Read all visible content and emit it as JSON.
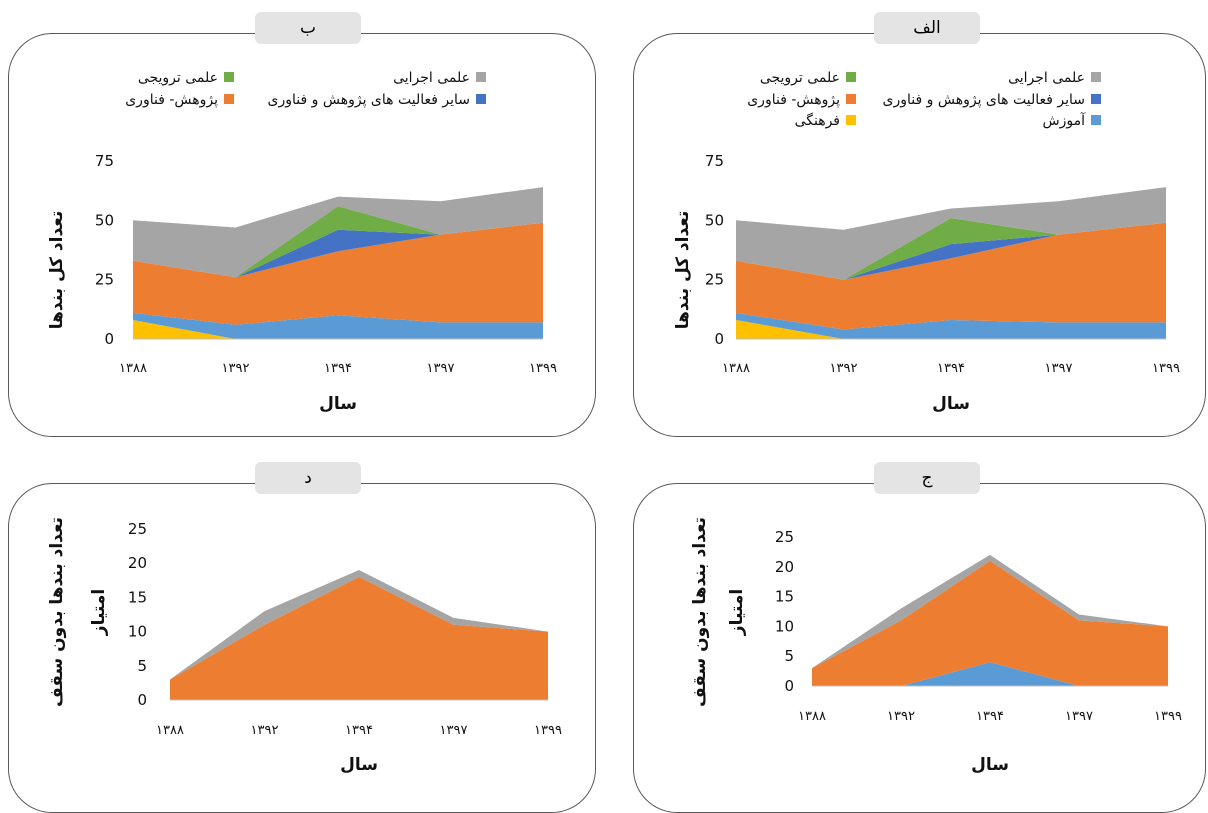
{
  "colors": {
    "amoozesh": "#5b9bd5",
    "pajoohesh": "#ed7d31",
    "sayer": "#4472c4",
    "tarviji": "#70ad47",
    "ejraei": "#a5a5a5",
    "farhangi": "#ffc000"
  },
  "chart_data": [
    {
      "id": "alef",
      "panel_label": "الف",
      "type": "area",
      "stacked": true,
      "x": [
        "۱۳۸۸",
        "۱۳۹۲",
        "۱۳۹۴",
        "۱۳۹۷",
        "۱۳۹۹"
      ],
      "xlabel": "سال",
      "ylabel": "تعداد کل بندها",
      "yticks": [
        "0",
        "25",
        "50",
        "75"
      ],
      "ylim": [
        0,
        75
      ],
      "grid": false,
      "legend": "top",
      "legend_items": [
        {
          "name": "علمی اجرایی",
          "color": "#a5a5a5"
        },
        {
          "name": "علمی ترویجی",
          "color": "#70ad47"
        },
        {
          "name": "سایر فعالیت های پژوهش و فناوری",
          "color": "#4472c4"
        },
        {
          "name": "پژوهش- فناوری",
          "color": "#ed7d31"
        },
        {
          "name": "آموزش",
          "color": "#5b9bd5"
        },
        {
          "name": "فرهنگی",
          "color": "#ffc000"
        }
      ],
      "series": [
        {
          "name": "فرهنگی",
          "color": "#ffc000",
          "values": [
            8,
            0,
            0,
            0,
            0
          ]
        },
        {
          "name": "آموزش",
          "color": "#5b9bd5",
          "values": [
            3,
            4,
            8,
            7,
            7
          ]
        },
        {
          "name": "پژوهش- فناوری",
          "color": "#ed7d31",
          "values": [
            22,
            21,
            26,
            37,
            42
          ]
        },
        {
          "name": "سایر فعالیت های پژوهش و فناوری",
          "color": "#4472c4",
          "values": [
            0,
            0,
            6,
            0,
            0
          ]
        },
        {
          "name": "علمی ترویجی",
          "color": "#70ad47",
          "values": [
            0,
            0,
            11,
            0,
            0
          ]
        },
        {
          "name": "علمی اجرایی",
          "color": "#a5a5a5",
          "values": [
            17,
            21,
            4,
            14,
            15
          ]
        }
      ]
    },
    {
      "id": "be",
      "panel_label": "ب",
      "type": "area",
      "stacked": true,
      "x": [
        "۱۳۸۸",
        "۱۳۹۲",
        "۱۳۹۴",
        "۱۳۹۷",
        "۱۳۹۹"
      ],
      "xlabel": "سال",
      "ylabel": "تعداد کل بندها",
      "yticks": [
        "0",
        "25",
        "50",
        "75"
      ],
      "ylim": [
        0,
        75
      ],
      "grid": false,
      "legend": "top",
      "legend_items": [
        {
          "name": "علمی اجرایی",
          "color": "#a5a5a5"
        },
        {
          "name": "علمی ترویجی",
          "color": "#70ad47"
        },
        {
          "name": "سایر فعالیت های پژوهش و فناوری",
          "color": "#4472c4"
        },
        {
          "name": "پژوهش- فناوری",
          "color": "#ed7d31"
        }
      ],
      "series": [
        {
          "name": "فرهنگی",
          "color": "#ffc000",
          "values": [
            8,
            0,
            0,
            0,
            0
          ]
        },
        {
          "name": "آموزش",
          "color": "#5b9bd5",
          "values": [
            3,
            6,
            10,
            7,
            7
          ]
        },
        {
          "name": "پژوهش- فناوری",
          "color": "#ed7d31",
          "values": [
            22,
            20,
            27,
            37,
            42
          ]
        },
        {
          "name": "سایر فعالیت های پژوهش و فناوری",
          "color": "#4472c4",
          "values": [
            0,
            0,
            9,
            0,
            0
          ]
        },
        {
          "name": "علمی ترویجی",
          "color": "#70ad47",
          "values": [
            0,
            0,
            10,
            0,
            0
          ]
        },
        {
          "name": "علمی اجرایی",
          "color": "#a5a5a5",
          "values": [
            17,
            21,
            4,
            14,
            15
          ]
        }
      ]
    },
    {
      "id": "jim",
      "panel_label": "ج",
      "type": "area",
      "stacked": true,
      "x": [
        "۱۳۸۸",
        "۱۳۹۲",
        "۱۳۹۴",
        "۱۳۹۷",
        "۱۳۹۹"
      ],
      "xlabel": "سال",
      "ylabel": "تعداد بندها بدون سقف امتیاز",
      "yticks": [
        "0",
        "5",
        "10",
        "15",
        "20",
        "25"
      ],
      "ylim": [
        0,
        25
      ],
      "grid": false,
      "legend": "none",
      "series": [
        {
          "name": "آموزش",
          "color": "#5b9bd5",
          "values": [
            0,
            0,
            4,
            0,
            0
          ]
        },
        {
          "name": "پژوهش- فناوری",
          "color": "#ed7d31",
          "values": [
            3,
            11,
            17,
            11,
            10
          ]
        },
        {
          "name": "علمی اجرایی",
          "color": "#a5a5a5",
          "values": [
            0,
            2,
            1,
            1,
            0
          ]
        }
      ]
    },
    {
      "id": "dal",
      "panel_label": "د",
      "type": "area",
      "stacked": true,
      "x": [
        "۱۳۸۸",
        "۱۳۹۲",
        "۱۳۹۴",
        "۱۳۹۷",
        "۱۳۹۹"
      ],
      "xlabel": "سال",
      "ylabel": "تعداد بندها بدون سقف امتیاز",
      "yticks": [
        "0",
        "5",
        "10",
        "15",
        "20",
        "25"
      ],
      "ylim": [
        0,
        25
      ],
      "grid": false,
      "legend": "none",
      "series": [
        {
          "name": "پژوهش- فناوری",
          "color": "#ed7d31",
          "values": [
            3,
            11,
            18,
            11,
            10
          ]
        },
        {
          "name": "علمی اجرایی",
          "color": "#a5a5a5",
          "values": [
            0,
            2,
            1,
            1,
            0
          ]
        }
      ]
    }
  ]
}
